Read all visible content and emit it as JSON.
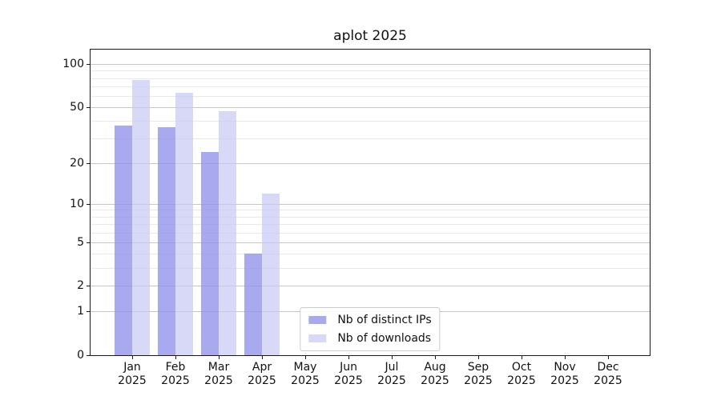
{
  "chart_data": {
    "type": "bar",
    "title": "aplot 2025",
    "scale": "log1p",
    "grid": "on",
    "legend_position": "lower center",
    "year": "2025",
    "categories": [
      "Jan",
      "Feb",
      "Mar",
      "Apr",
      "May",
      "Jun",
      "Jul",
      "Aug",
      "Sep",
      "Oct",
      "Nov",
      "Dec"
    ],
    "series": [
      {
        "name": "Nb of distinct IPs",
        "color": "#9191ec",
        "alpha": 0.78,
        "values": [
          37,
          36,
          24,
          4,
          0,
          0,
          0,
          0,
          0,
          0,
          0,
          0
        ]
      },
      {
        "name": "Nb of downloads",
        "color": "#c8c8f4",
        "alpha": 0.7,
        "values": [
          77,
          63,
          47,
          12,
          0,
          0,
          0,
          0,
          0,
          0,
          0,
          0
        ]
      }
    ],
    "y_ticks": [
      0,
      1,
      2,
      5,
      10,
      20,
      50,
      100
    ],
    "y_minor_ticks": [
      3,
      4,
      6,
      7,
      8,
      9,
      30,
      40,
      60,
      70,
      80,
      90
    ],
    "ylim": [
      0,
      126
    ],
    "colors": {
      "grid_major": "#c6c6c6",
      "grid_minor": "#e9e9e9",
      "spine": "#1a1a1a",
      "text": "#111111",
      "legend_border": "#cccccc"
    }
  }
}
